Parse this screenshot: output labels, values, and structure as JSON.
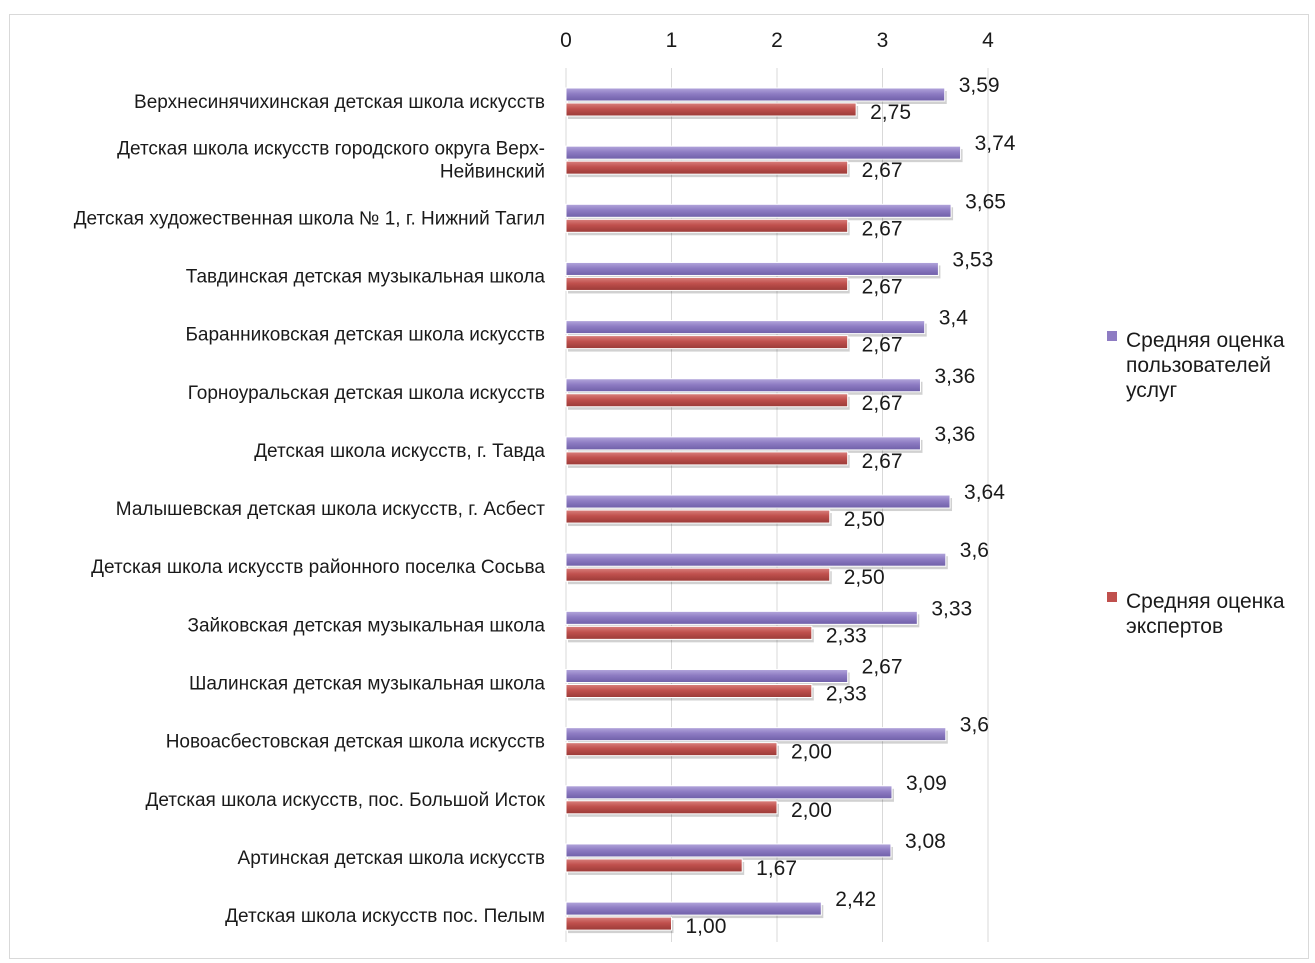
{
  "chart_data": {
    "type": "bar",
    "orientation": "horizontal",
    "title": "",
    "xlabel": "",
    "ylabel": "",
    "xlim": [
      0,
      4
    ],
    "x_ticks": [
      "0",
      "1",
      "2",
      "3",
      "4"
    ],
    "axis_position": "top",
    "grid": true,
    "legend_position": "right",
    "categories": [
      "Верхнесинячихинская детская школа искусств",
      "Детская школа искусств городского округа Верх-Нейвинский",
      "Детская художественная школа № 1, г. Нижний Тагил",
      "Тавдинская детская музыкальная школа",
      "Баранниковская детская школа искусств",
      "Горноуральская детская школа искусств",
      "Детская школа искусств, г. Тавда",
      "Малышевская детская школа искусств, г. Асбест",
      "Детская школа искусств районного поселка Сосьва",
      "Зайковская детская музыкальная школа",
      "Шалинская детская музыкальная школа",
      "Новоасбестовская детская школа искусств",
      "Детская школа искусств, пос. Большой Исток",
      "Артинская детская школа искусств",
      "Детская школа искусств пос. Пелым"
    ],
    "category_lines": [
      [
        "Верхнесинячихинская детская школа искусств"
      ],
      [
        "Детская школа искусств городского округа Верх-",
        "Нейвинский"
      ],
      [
        "Детская художественная школа № 1, г. Нижний Тагил"
      ],
      [
        "Тавдинская детская музыкальная школа"
      ],
      [
        "Баранниковская детская школа искусств"
      ],
      [
        "Горноуральская детская школа искусств"
      ],
      [
        "Детская школа искусств, г. Тавда"
      ],
      [
        "Малышевская детская школа искусств, г. Асбест"
      ],
      [
        "Детская школа искусств районного поселка Сосьва"
      ],
      [
        "Зайковская детская музыкальная школа"
      ],
      [
        "Шалинская детская музыкальная школа"
      ],
      [
        "Новоасбестовская детская школа искусств"
      ],
      [
        "Детская школа искусств, пос. Большой Исток"
      ],
      [
        "Артинская детская школа искусств"
      ],
      [
        "Детская школа искусств пос. Пелым"
      ]
    ],
    "series": [
      {
        "name": "Средняя оценка пользователей услуг",
        "legend_lines": [
          "Средняя оценка",
          "пользователей",
          "услуг"
        ],
        "color": "#8e7cc3",
        "values": [
          3.59,
          3.74,
          3.65,
          3.53,
          3.4,
          3.36,
          3.36,
          3.64,
          3.6,
          3.33,
          2.67,
          3.6,
          3.09,
          3.08,
          2.42
        ],
        "labels": [
          "3,59",
          "3,74",
          "3,65",
          "3,53",
          "3,4",
          "3,36",
          "3,36",
          "3,64",
          "3,6",
          "3,33",
          "2,67",
          "3,6",
          "3,09",
          "3,08",
          "2,42"
        ]
      },
      {
        "name": "Средняя оценка экспертов",
        "legend_lines": [
          "Средняя оценка",
          "экспертов"
        ],
        "color": "#c0504d",
        "values": [
          2.75,
          2.67,
          2.67,
          2.67,
          2.67,
          2.67,
          2.67,
          2.5,
          2.5,
          2.33,
          2.33,
          2.0,
          2.0,
          1.67,
          1.0
        ],
        "labels": [
          "2,75",
          "2,67",
          "2,67",
          "2,67",
          "2,67",
          "2,67",
          "2,67",
          "2,50",
          "2,50",
          "2,33",
          "2,33",
          "2,00",
          "2,00",
          "1,67",
          "1,00"
        ]
      }
    ]
  }
}
